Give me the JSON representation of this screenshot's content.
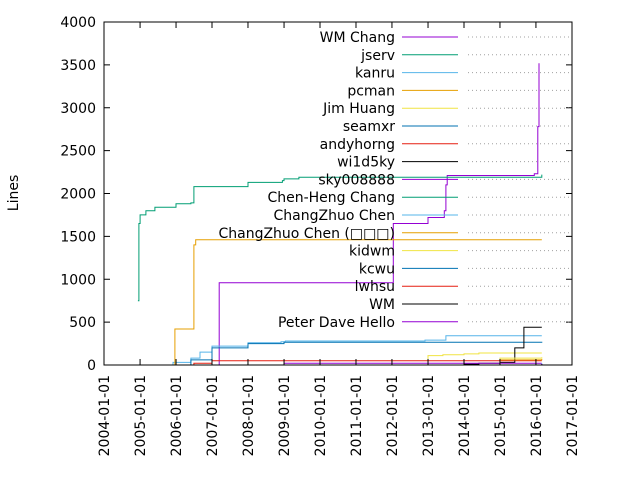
{
  "chart_data": {
    "type": "line",
    "title": "",
    "xlabel": "",
    "ylabel": "Lines",
    "x_type": "date",
    "xlim": [
      "2004-01-01",
      "2017-01-01"
    ],
    "ylim": [
      0,
      4000
    ],
    "x_ticks": [
      "2004-01-01",
      "2005-01-01",
      "2006-01-01",
      "2007-01-01",
      "2008-01-01",
      "2009-01-01",
      "2010-01-01",
      "2011-01-01",
      "2012-01-01",
      "2013-01-01",
      "2014-01-01",
      "2015-01-01",
      "2016-01-01",
      "2017-01-01"
    ],
    "y_ticks": [
      "0",
      "500",
      "1000",
      "1500",
      "2000",
      "2500",
      "3000",
      "3500",
      "4000"
    ],
    "grid": false,
    "legend_position": "top-right",
    "series": [
      {
        "name": "WM Chang",
        "color": "#9400d3",
        "x": [
          "2006-01-01",
          "2007-01-01",
          "2007-03-15",
          "2011-12-20",
          "2012-01-15",
          "2013-01-01",
          "2013-06-15",
          "2013-07-01",
          "2013-07-15",
          "2015-11-01",
          "2015-12-15",
          "2016-01-20",
          "2016-02-01"
        ],
        "y": [
          0,
          0,
          960,
          960,
          1650,
          1720,
          1800,
          2100,
          2210,
          2210,
          2230,
          2780,
          3520
        ]
      },
      {
        "name": "jserv",
        "color": "#009e73",
        "x": [
          "2004-12-10",
          "2004-12-20",
          "2005-01-01",
          "2005-03-01",
          "2005-06-01",
          "2006-01-01",
          "2006-06-01",
          "2006-07-01",
          "2008-01-01",
          "2008-12-15",
          "2009-01-01",
          "2009-06-01",
          "2016-03-01"
        ],
        "y": [
          750,
          1650,
          1750,
          1800,
          1840,
          1880,
          1890,
          2080,
          2130,
          2150,
          2170,
          2190,
          2220
        ]
      },
      {
        "name": "kanru",
        "color": "#56b4e9",
        "x": [
          "2005-01-01",
          "2005-12-01",
          "2006-06-01",
          "2006-09-01",
          "2007-01-01",
          "2008-01-01",
          "2008-12-01",
          "2009-01-15",
          "2012-12-01",
          "2013-06-20",
          "2013-07-01",
          "2016-03-01"
        ],
        "y": [
          0,
          30,
          80,
          150,
          220,
          260,
          270,
          280,
          290,
          290,
          340,
          340
        ]
      },
      {
        "name": "pcman",
        "color": "#e69f00",
        "x": [
          "2005-12-15",
          "2005-12-20",
          "2006-06-01",
          "2006-07-01",
          "2006-07-20",
          "2007-01-01",
          "2016-03-01"
        ],
        "y": [
          0,
          420,
          420,
          1400,
          1460,
          1460,
          1460
        ]
      },
      {
        "name": "Jim Huang",
        "color": "#f0e442",
        "x": [
          "2005-06-01",
          "2012-12-01",
          "2013-01-01",
          "2013-06-01",
          "2014-01-01",
          "2014-06-01",
          "2016-03-01"
        ],
        "y": [
          0,
          0,
          110,
          120,
          130,
          140,
          140
        ]
      },
      {
        "name": "seamxr",
        "color": "#0072b2",
        "x": [
          "2006-01-01",
          "2006-06-01",
          "2007-01-01",
          "2008-01-01",
          "2009-01-01",
          "2016-03-01"
        ],
        "y": [
          0,
          60,
          200,
          250,
          265,
          270
        ]
      },
      {
        "name": "andyhorng",
        "color": "#e51e10",
        "x": [
          "2006-06-01",
          "2006-07-01",
          "2007-01-01",
          "2012-01-01",
          "2016-03-01"
        ],
        "y": [
          0,
          20,
          50,
          50,
          50
        ]
      },
      {
        "name": "wi1d5ky",
        "color": "#000000",
        "x": [
          "2012-06-01",
          "2014-01-01",
          "2014-06-01",
          "2015-01-01",
          "2015-06-01",
          "2015-09-01",
          "2016-03-01"
        ],
        "y": [
          0,
          10,
          20,
          30,
          200,
          440,
          440
        ]
      },
      {
        "name": "sky008888",
        "color": "#9400d3",
        "x": [
          "2008-12-01",
          "2009-01-01",
          "2016-03-01"
        ],
        "y": [
          0,
          20,
          20
        ]
      },
      {
        "name": "Chen-Heng Chang",
        "color": "#009e73",
        "x": [
          "2006-01-01",
          "2016-03-01"
        ],
        "y": [
          0,
          10
        ]
      },
      {
        "name": "ChangZhuo Chen",
        "color": "#56b4e9",
        "x": [
          "2013-06-15",
          "2016-03-01"
        ],
        "y": [
          0,
          20
        ]
      },
      {
        "name": "ChangZhuo Chen (□□□)",
        "color": "#e69f00",
        "x": [
          "2014-06-01",
          "2015-01-01",
          "2016-03-01"
        ],
        "y": [
          0,
          60,
          70
        ]
      },
      {
        "name": "kidwm",
        "color": "#f0e442",
        "x": [
          "2014-01-01",
          "2015-01-01",
          "2016-03-01"
        ],
        "y": [
          0,
          80,
          90
        ]
      },
      {
        "name": "kcwu",
        "color": "#0072b2",
        "x": [
          "2013-01-01",
          "2016-03-01"
        ],
        "y": [
          0,
          10
        ]
      },
      {
        "name": "lwhsu",
        "color": "#e51e10",
        "x": [
          "2014-01-01",
          "2016-03-01"
        ],
        "y": [
          0,
          10
        ]
      },
      {
        "name": "WM",
        "color": "#000000",
        "x": [
          "2015-06-01",
          "2016-03-01"
        ],
        "y": [
          0,
          10
        ]
      },
      {
        "name": "Peter Dave Hello",
        "color": "#9400d3",
        "x": [
          "2016-01-01",
          "2016-03-01"
        ],
        "y": [
          0,
          10
        ]
      }
    ]
  }
}
